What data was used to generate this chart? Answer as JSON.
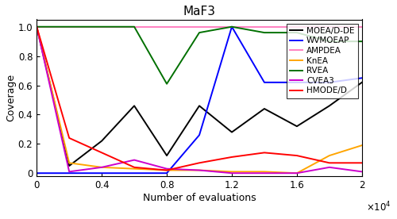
{
  "title": "MaF3",
  "xlabel": "Number of evaluations",
  "ylabel": "Coverage",
  "xlim": [
    0,
    20000
  ],
  "ylim": [
    -0.02,
    1.05
  ],
  "xticks": [
    0,
    4000,
    8000,
    12000,
    16000,
    20000
  ],
  "xtick_labels": [
    "0",
    "0.4",
    "0.8",
    "1.2",
    "1.6",
    "2"
  ],
  "yticks": [
    0,
    0.2,
    0.4,
    0.6,
    0.8,
    1.0
  ],
  "series": [
    {
      "label": "MOEA/D-DE",
      "color": "#000000",
      "linewidth": 1.4,
      "x": [
        0,
        2000,
        4000,
        6000,
        8000,
        10000,
        12000,
        14000,
        16000,
        18000,
        20000
      ],
      "y": [
        1.0,
        0.05,
        0.22,
        0.46,
        0.12,
        0.46,
        0.28,
        0.44,
        0.32,
        0.46,
        0.62
      ]
    },
    {
      "label": "WVMOEAP",
      "color": "#0000ff",
      "linewidth": 1.4,
      "x": [
        0,
        2000,
        4000,
        6000,
        8000,
        10000,
        12000,
        14000,
        16000,
        18000,
        20000
      ],
      "y": [
        0.0,
        0.0,
        0.0,
        0.0,
        0.0,
        0.26,
        1.0,
        0.62,
        0.62,
        0.62,
        0.65
      ]
    },
    {
      "label": "AMPDEA",
      "color": "#ff80c0",
      "linewidth": 1.4,
      "x": [
        0,
        2000,
        4000,
        6000,
        8000,
        10000,
        12000,
        14000,
        16000,
        18000,
        20000
      ],
      "y": [
        1.0,
        1.0,
        1.0,
        1.0,
        1.0,
        1.0,
        1.0,
        1.0,
        1.0,
        1.0,
        1.0
      ]
    },
    {
      "label": "KnEA",
      "color": "#ffa500",
      "linewidth": 1.4,
      "x": [
        0,
        2000,
        4000,
        6000,
        8000,
        10000,
        12000,
        14000,
        16000,
        18000,
        20000
      ],
      "y": [
        1.0,
        0.07,
        0.04,
        0.03,
        0.02,
        0.02,
        0.01,
        0.01,
        0.0,
        0.12,
        0.19
      ]
    },
    {
      "label": "RVEA",
      "color": "#007000",
      "linewidth": 1.4,
      "x": [
        0,
        2000,
        4000,
        6000,
        8000,
        10000,
        12000,
        14000,
        16000,
        18000,
        20000
      ],
      "y": [
        1.0,
        1.0,
        1.0,
        1.0,
        0.61,
        0.96,
        1.0,
        0.96,
        0.96,
        0.9,
        0.9
      ]
    },
    {
      "label": "CVEA3",
      "color": "#cc00cc",
      "linewidth": 1.4,
      "x": [
        0,
        2000,
        4000,
        6000,
        8000,
        10000,
        12000,
        14000,
        16000,
        18000,
        20000
      ],
      "y": [
        1.0,
        0.01,
        0.04,
        0.09,
        0.03,
        0.02,
        0.0,
        0.0,
        0.0,
        0.04,
        0.01
      ]
    },
    {
      "label": "HMODE/D",
      "color": "#ff0000",
      "linewidth": 1.4,
      "x": [
        0,
        2000,
        4000,
        6000,
        8000,
        10000,
        12000,
        14000,
        16000,
        18000,
        20000
      ],
      "y": [
        1.0,
        0.24,
        0.14,
        0.04,
        0.02,
        0.07,
        0.11,
        0.14,
        0.12,
        0.07,
        0.07
      ]
    }
  ],
  "legend_loc": "upper right",
  "legend_fontsize": 7.5,
  "title_fontsize": 11,
  "axis_fontsize": 9,
  "tick_fontsize": 8.5
}
